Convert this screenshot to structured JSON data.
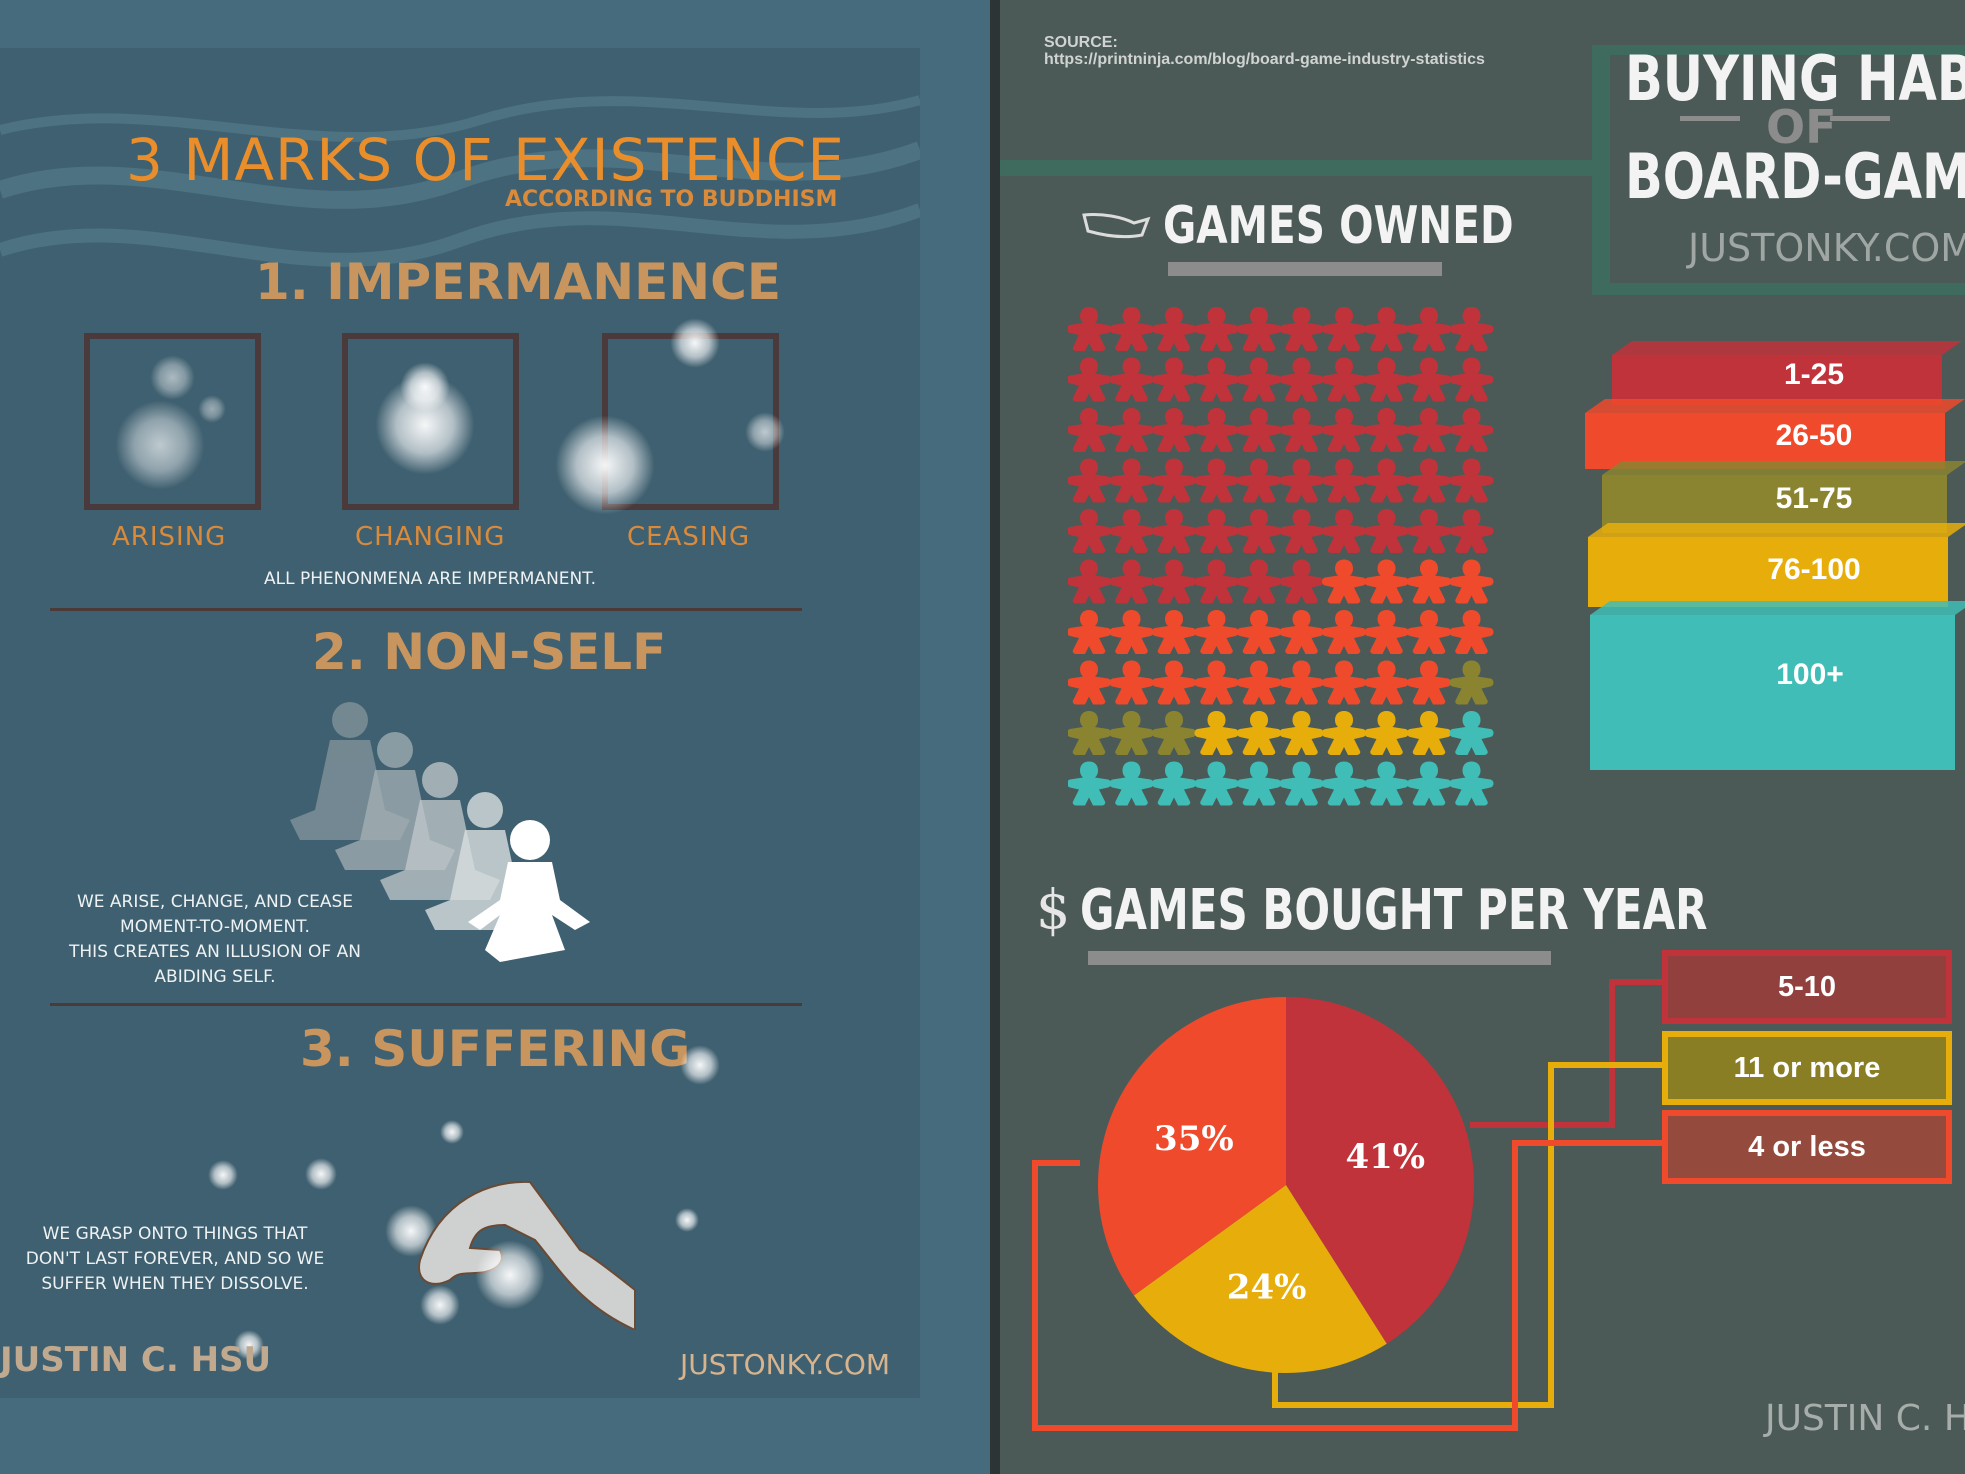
{
  "left": {
    "title": "3 MARKS OF EXISTENCE",
    "subtitle": "ACCORDING TO BUDDHISM",
    "section1": {
      "heading": "1. IMPERMANENCE",
      "labels": [
        "ARISING",
        "CHANGING",
        "CEASING"
      ],
      "caption": "ALL PHENONMENA ARE  IMPERMANENT."
    },
    "section2": {
      "heading": "2. NON-SELF",
      "caption_lines": [
        "WE ARISE, CHANGE, AND CEASE",
        "MOMENT-TO-MOMENT.",
        "THIS CREATES AN ILLUSION OF AN",
        "ABIDING SELF."
      ]
    },
    "section3": {
      "heading": "3. SUFFERING",
      "caption_lines": [
        "WE GRASP ONTO THINGS THAT",
        "DON'T LAST FOREVER, AND SO WE",
        "SUFFER WHEN THEY DISSOLVE."
      ]
    },
    "author": "JUSTIN C. HSU",
    "site": "JUSTONKY.COM"
  },
  "right": {
    "source_label": "SOURCE:",
    "source_url": "https://printninja.com/blog/board-game-industry-statistics",
    "title_line1": "BUYING HABIT",
    "title_of": "OF",
    "title_line2": "BOARD-GAME",
    "site": "JUSTONKY.COM",
    "games_owned_heading": "GAMES OWNED",
    "games_bought_heading": "GAMES BOUGHT PER YEAR",
    "dollar_icon": "$",
    "author": "JUSTIN C. H",
    "stack_labels": [
      "1-25",
      "26-50",
      "51-75",
      "76-100",
      "100+"
    ],
    "legend": [
      "5-10",
      "11 or more",
      "4 or less"
    ],
    "colors": {
      "red": "#c0333a",
      "orange": "#ef4a2c",
      "olive": "#8a8430",
      "yellow": "#e7ae0b",
      "teal": "#3fbdb6"
    }
  },
  "chart_data": {
    "type": "pie",
    "title": "GAMES BOUGHT PER YEAR",
    "slices": [
      {
        "label": "5-10",
        "value": 41,
        "text": "41%",
        "color": "#c0333a"
      },
      {
        "label": "11 or more",
        "value": 24,
        "text": "24%",
        "color": "#e7ae0b"
      },
      {
        "label": "4 or less",
        "value": 35,
        "text": "35%",
        "color": "#ef4a2c"
      }
    ],
    "games_owned_icons": [
      {
        "label": "1-25",
        "count": 56,
        "color": "#c0333a"
      },
      {
        "label": "26-50",
        "count": 23,
        "color": "#ef4a2c"
      },
      {
        "label": "51-75",
        "count": 4,
        "color": "#8a8430"
      },
      {
        "label": "76-100",
        "count": 6,
        "color": "#e7ae0b"
      },
      {
        "label": "100+",
        "count": 11,
        "color": "#3fbdb6"
      }
    ]
  }
}
